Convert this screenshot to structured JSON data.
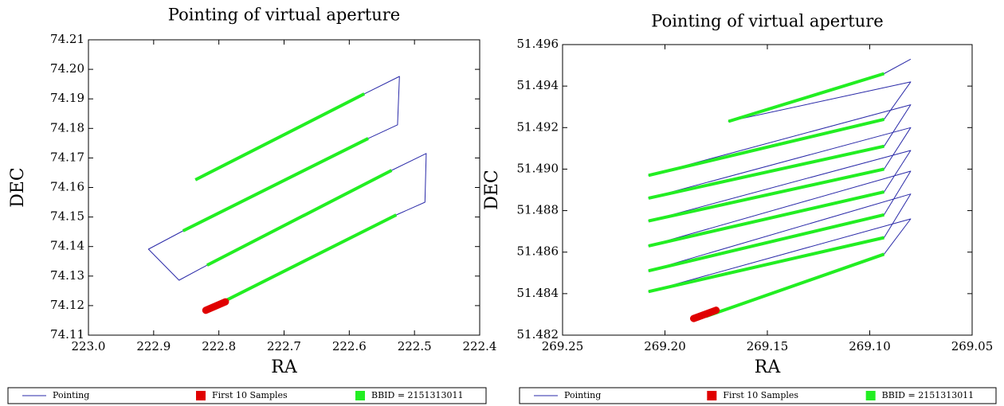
{
  "chart_data": [
    {
      "type": "line",
      "title": "Pointing of virtual aperture",
      "x_label": "RA",
      "y_label": "DEC",
      "xlim": [
        223.0,
        222.4
      ],
      "ylim": [
        74.11,
        74.21
      ],
      "xticks": [
        {
          "value": 223.0,
          "label": "223.0"
        },
        222.9,
        222.8,
        222.7,
        222.6,
        222.5,
        222.4
      ],
      "yticks": [
        74.11,
        74.12,
        74.13,
        74.14,
        74.15,
        74.16,
        74.17,
        74.18,
        74.19,
        {
          "value": 74.2,
          "label": "74.20"
        },
        74.21
      ],
      "grid": false,
      "legend": "bottom",
      "series": [
        {
          "name": "Pointing",
          "color": "#2a2aa8",
          "x": [
            222.815,
            222.528,
            222.484,
            222.482,
            222.535,
            222.818,
            222.861,
            222.908,
            222.855,
            222.571,
            222.526,
            222.523,
            222.577,
            222.836
          ],
          "values": [
            74.1189,
            74.1507,
            74.155,
            74.1715,
            74.1658,
            74.1337,
            74.1286,
            74.1391,
            74.1453,
            74.1766,
            74.1812,
            74.1976,
            74.1917,
            74.1626
          ]
        },
        {
          "name": "First 10 Samples",
          "color": "#e00000",
          "x": [
            222.82,
            222.79
          ],
          "values": [
            74.1184,
            74.1213
          ]
        },
        {
          "name": "BBID = 2151313011",
          "color": "#22ee22",
          "x": [
            222.815,
            222.528,
            null,
            222.818,
            222.535,
            null,
            222.855,
            222.571,
            null,
            222.836,
            222.577
          ],
          "values": [
            74.1189,
            74.1507,
            null,
            74.1337,
            74.1658,
            null,
            74.1453,
            74.1766,
            null,
            74.1626,
            74.1917
          ]
        }
      ]
    },
    {
      "type": "line",
      "title": "Pointing of virtual aperture",
      "x_label": "RA",
      "y_label": "DEC",
      "xlim": [
        269.25,
        269.05
      ],
      "ylim": [
        51.482,
        51.496
      ],
      "xticks": [
        269.25,
        {
          "value": 269.2,
          "label": "269.20"
        },
        269.15,
        {
          "value": 269.1,
          "label": "269.10"
        },
        269.05
      ],
      "yticks": [
        51.482,
        51.484,
        51.486,
        51.488,
        {
          "value": 51.49,
          "label": "51.490"
        },
        51.492,
        51.494,
        51.496
      ],
      "grid": false,
      "legend": "bottom",
      "series": [
        {
          "name": "Pointing",
          "color": "#2a2aa8",
          "x": [
            269.18,
            269.093,
            269.08,
            269.208,
            269.093,
            269.08,
            269.208,
            269.093,
            269.08,
            269.208,
            269.093,
            269.08,
            269.208,
            269.093,
            269.08,
            269.208,
            269.093,
            269.08,
            269.208,
            269.093,
            269.08,
            269.169,
            269.093,
            269.08
          ],
          "values": [
            51.4829,
            51.4859,
            51.4876,
            51.4841,
            51.4867,
            51.4888,
            51.4851,
            51.4878,
            51.4899,
            51.4863,
            51.4889,
            51.4909,
            51.4875,
            51.49,
            51.492,
            51.4886,
            51.4911,
            51.4931,
            51.4897,
            51.4924,
            51.4942,
            51.4923,
            51.4946,
            51.4953
          ]
        },
        {
          "name": "First 10 Samples",
          "color": "#e00000",
          "x": [
            269.186,
            269.175
          ],
          "values": [
            51.4828,
            51.4832
          ]
        },
        {
          "name": "BBID = 2151313011",
          "color": "#22ee22",
          "x": [
            269.18,
            269.093,
            null,
            269.208,
            269.093,
            null,
            269.208,
            269.093,
            null,
            269.208,
            269.093,
            null,
            269.208,
            269.093,
            null,
            269.208,
            269.093,
            null,
            269.208,
            269.093,
            null,
            269.169,
            269.093
          ],
          "values": [
            51.4829,
            51.4859,
            null,
            51.4841,
            51.4867,
            null,
            51.4851,
            51.4878,
            null,
            51.4863,
            51.4889,
            null,
            51.4875,
            51.49,
            null,
            51.4886,
            51.4911,
            null,
            51.4897,
            51.4924,
            null,
            51.4923,
            51.4946
          ]
        }
      ]
    }
  ]
}
